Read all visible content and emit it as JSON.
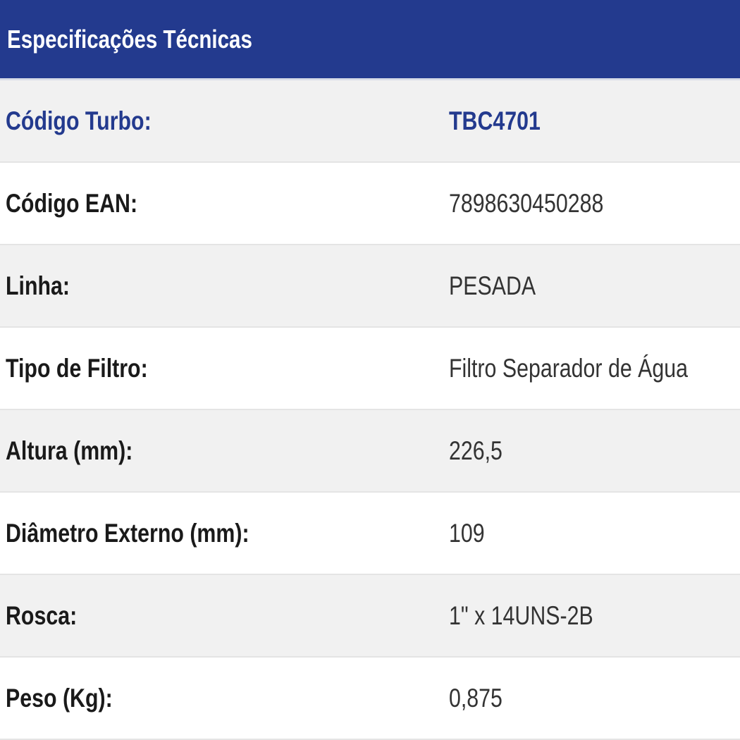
{
  "title": "Especificações Técnicas",
  "accent_color": "#233a8e",
  "specs": [
    {
      "label": "Código Turbo:",
      "value": "TBC4701"
    },
    {
      "label": "Código EAN:",
      "value": "7898630450288"
    },
    {
      "label": "Linha:",
      "value": "PESADA"
    },
    {
      "label": "Tipo de Filtro:",
      "value": "Filtro Separador de Água"
    },
    {
      "label": "Altura (mm):",
      "value": "226,5"
    },
    {
      "label": "Diâmetro Externo (mm):",
      "value": "109"
    },
    {
      "label": "Rosca:",
      "value": "1\" x 14UNS-2B"
    },
    {
      "label": "Peso (Kg):",
      "value": "0,875"
    }
  ]
}
